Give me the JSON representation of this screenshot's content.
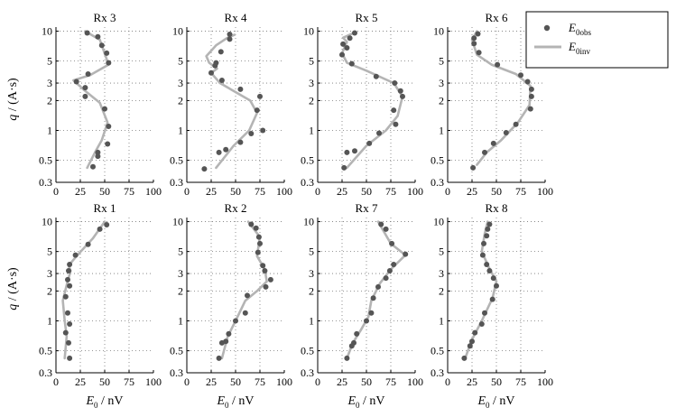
{
  "figure": {
    "ylabel": {
      "q": "q",
      "rest": " / (A·s)"
    },
    "xlabel": {
      "E": "E",
      "sub": "0",
      "rest": " / nV"
    },
    "legend": [
      {
        "base": "E",
        "sub": "0obs"
      },
      {
        "base": "E",
        "sub": "0inv"
      }
    ]
  },
  "chart_data": [
    {
      "type": "line",
      "title": "Rx 3",
      "xlim": [
        0,
        100
      ],
      "ylim": [
        0.3,
        11
      ],
      "yscale": "log",
      "xticks": [
        0,
        25,
        50,
        75,
        100
      ],
      "yticks": [
        0.3,
        0.5,
        1,
        2,
        3,
        5,
        10
      ],
      "series": [
        {
          "role": "obs",
          "points": [
            [
              32,
              9.6
            ],
            [
              43,
              8.8
            ],
            [
              47,
              7.2
            ],
            [
              52,
              6.0
            ],
            [
              54,
              4.8
            ],
            [
              33,
              3.7
            ],
            [
              21,
              3.1
            ],
            [
              30,
              2.7
            ],
            [
              30,
              2.2
            ],
            [
              50,
              1.65
            ],
            [
              54,
              1.1
            ],
            [
              53,
              0.73
            ],
            [
              43,
              0.6
            ],
            [
              43,
              0.55
            ],
            [
              38,
              0.43
            ]
          ]
        },
        {
          "role": "inv",
          "points": [
            [
              30,
              10
            ],
            [
              45,
              8.2
            ],
            [
              54,
              4.6
            ],
            [
              35,
              3.6
            ],
            [
              18,
              3.2
            ],
            [
              30,
              2.5
            ],
            [
              45,
              1.9
            ],
            [
              53,
              1.2
            ],
            [
              47,
              0.8
            ],
            [
              40,
              0.6
            ],
            [
              32,
              0.42
            ]
          ]
        }
      ]
    },
    {
      "type": "line",
      "title": "Rx 4",
      "xlim": [
        0,
        100
      ],
      "ylim": [
        0.3,
        11
      ],
      "yscale": "log",
      "xticks": [
        0,
        25,
        50,
        75,
        100
      ],
      "yticks": [
        0.3,
        0.5,
        1,
        2,
        3,
        5,
        10
      ],
      "series": [
        {
          "role": "obs",
          "points": [
            [
              44,
              9.3
            ],
            [
              44,
              8.3
            ],
            [
              35,
              6.2
            ],
            [
              30,
              4.8
            ],
            [
              29,
              4.5
            ],
            [
              25,
              3.8
            ],
            [
              36,
              3.2
            ],
            [
              55,
              2.6
            ],
            [
              75,
              2.2
            ],
            [
              72,
              1.6
            ],
            [
              78,
              1.0
            ],
            [
              66,
              0.93
            ],
            [
              55,
              0.76
            ],
            [
              40,
              0.64
            ],
            [
              33,
              0.6
            ],
            [
              18,
              0.41
            ]
          ]
        },
        {
          "role": "inv",
          "points": [
            [
              49,
              9.2
            ],
            [
              41,
              8.5
            ],
            [
              30,
              7.2
            ],
            [
              20,
              5.6
            ],
            [
              23,
              4.8
            ],
            [
              31,
              4.2
            ],
            [
              25,
              3.8
            ],
            [
              34,
              3.0
            ],
            [
              65,
              2.0
            ],
            [
              72,
              1.5
            ],
            [
              64,
              1.0
            ],
            [
              48,
              0.7
            ],
            [
              30,
              0.42
            ]
          ]
        }
      ]
    },
    {
      "type": "line",
      "title": "Rx 5",
      "xlim": [
        0,
        100
      ],
      "ylim": [
        0.3,
        11
      ],
      "yscale": "log",
      "xticks": [
        0,
        25,
        50,
        75,
        100
      ],
      "yticks": [
        0.3,
        0.5,
        1,
        2,
        3,
        5,
        10
      ],
      "series": [
        {
          "role": "obs",
          "points": [
            [
              38,
              9.6
            ],
            [
              33,
              8.5
            ],
            [
              26,
              7.4
            ],
            [
              30,
              6.8
            ],
            [
              25,
              5.8
            ],
            [
              35,
              4.7
            ],
            [
              60,
              3.5
            ],
            [
              79,
              3.0
            ],
            [
              85,
              2.5
            ],
            [
              87,
              2.2
            ],
            [
              78,
              1.6
            ],
            [
              80,
              1.15
            ],
            [
              63,
              0.94
            ],
            [
              53,
              0.74
            ],
            [
              38,
              0.62
            ],
            [
              30,
              0.6
            ],
            [
              27,
              0.42
            ]
          ]
        },
        {
          "role": "inv",
          "points": [
            [
              37,
              9.6
            ],
            [
              26,
              8.6
            ],
            [
              30,
              7.8
            ],
            [
              25,
              6.0
            ],
            [
              30,
              4.8
            ],
            [
              50,
              4.0
            ],
            [
              78,
              3.0
            ],
            [
              87,
              2.2
            ],
            [
              82,
              1.4
            ],
            [
              70,
              1.0
            ],
            [
              50,
              0.7
            ],
            [
              30,
              0.42
            ]
          ]
        }
      ]
    },
    {
      "type": "line",
      "title": "Rx 6",
      "xlim": [
        0,
        100
      ],
      "ylim": [
        0.3,
        11
      ],
      "yscale": "log",
      "xticks": [
        0,
        25,
        50,
        75,
        100
      ],
      "yticks": [
        0.3,
        0.5,
        1,
        2,
        3,
        5,
        10
      ],
      "series": [
        {
          "role": "obs",
          "points": [
            [
              31,
              9.4
            ],
            [
              27,
              8.5
            ],
            [
              27,
              7.5
            ],
            [
              32,
              6.1
            ],
            [
              51,
              4.6
            ],
            [
              75,
              3.6
            ],
            [
              82,
              3.1
            ],
            [
              86,
              2.6
            ],
            [
              86,
              2.2
            ],
            [
              85,
              1.65
            ],
            [
              70,
              1.15
            ],
            [
              60,
              0.95
            ],
            [
              47,
              0.74
            ],
            [
              38,
              0.6
            ],
            [
              26,
              0.42
            ]
          ]
        },
        {
          "role": "inv",
          "points": [
            [
              30,
              10
            ],
            [
              25,
              8.2
            ],
            [
              30,
              5.8
            ],
            [
              45,
              4.6
            ],
            [
              70,
              3.7
            ],
            [
              85,
              2.8
            ],
            [
              84,
              1.8
            ],
            [
              72,
              1.2
            ],
            [
              55,
              0.8
            ],
            [
              40,
              0.6
            ],
            [
              30,
              0.45
            ]
          ]
        }
      ]
    },
    {
      "type": "line",
      "title": "Rx 1",
      "xlim": [
        0,
        100
      ],
      "ylim": [
        0.3,
        11
      ],
      "yscale": "log",
      "xticks": [
        0,
        25,
        50,
        75,
        100
      ],
      "yticks": [
        0.3,
        0.5,
        1,
        2,
        3,
        5,
        10
      ],
      "series": [
        {
          "role": "obs",
          "points": [
            [
              52,
              9.3
            ],
            [
              45,
              8.4
            ],
            [
              33,
              5.9
            ],
            [
              20,
              4.6
            ],
            [
              14,
              3.7
            ],
            [
              13,
              3.2
            ],
            [
              12,
              2.6
            ],
            [
              14,
              2.25
            ],
            [
              10,
              1.75
            ],
            [
              12,
              1.2
            ],
            [
              14,
              0.93
            ],
            [
              10,
              0.76
            ],
            [
              13,
              0.6
            ],
            [
              14,
              0.42
            ]
          ]
        },
        {
          "role": "inv",
          "points": [
            [
              50,
              10
            ],
            [
              38,
              6.8
            ],
            [
              22,
              4.6
            ],
            [
              13,
              3.6
            ],
            [
              15,
              3.2
            ],
            [
              11,
              2.3
            ],
            [
              7,
              1.6
            ],
            [
              9,
              1.0
            ],
            [
              11,
              0.7
            ],
            [
              9,
              0.42
            ]
          ]
        }
      ]
    },
    {
      "type": "line",
      "title": "Rx 2",
      "xlim": [
        0,
        100
      ],
      "ylim": [
        0.3,
        11
      ],
      "yscale": "log",
      "xticks": [
        0,
        25,
        50,
        75,
        100
      ],
      "yticks": [
        0.3,
        0.5,
        1,
        2,
        3,
        5,
        10
      ],
      "series": [
        {
          "role": "obs",
          "points": [
            [
              66,
              9.4
            ],
            [
              71,
              8.6
            ],
            [
              74,
              7.0
            ],
            [
              75,
              6.0
            ],
            [
              73,
              4.9
            ],
            [
              78,
              3.6
            ],
            [
              80,
              3.2
            ],
            [
              86,
              2.6
            ],
            [
              81,
              2.2
            ],
            [
              62,
              1.8
            ],
            [
              60,
              1.2
            ],
            [
              50,
              1.0
            ],
            [
              43,
              0.74
            ],
            [
              40,
              0.62
            ],
            [
              36,
              0.6
            ],
            [
              33,
              0.42
            ]
          ]
        },
        {
          "role": "inv",
          "points": [
            [
              63,
              10
            ],
            [
              75,
              7.0
            ],
            [
              72,
              4.5
            ],
            [
              80,
              3.3
            ],
            [
              82,
              2.5
            ],
            [
              72,
              2.0
            ],
            [
              60,
              1.6
            ],
            [
              50,
              1.0
            ],
            [
              42,
              0.7
            ],
            [
              36,
              0.42
            ]
          ]
        }
      ]
    },
    {
      "type": "line",
      "title": "Rx 7",
      "xlim": [
        0,
        100
      ],
      "ylim": [
        0.3,
        11
      ],
      "yscale": "log",
      "xticks": [
        0,
        25,
        50,
        75,
        100
      ],
      "yticks": [
        0.3,
        0.5,
        1,
        2,
        3,
        5,
        10
      ],
      "series": [
        {
          "role": "obs",
          "points": [
            [
              65,
              9.4
            ],
            [
              70,
              8.4
            ],
            [
              76,
              6.0
            ],
            [
              90,
              4.7
            ],
            [
              78,
              3.7
            ],
            [
              74,
              3.2
            ],
            [
              70,
              2.7
            ],
            [
              62,
              2.2
            ],
            [
              57,
              1.7
            ],
            [
              55,
              1.2
            ],
            [
              50,
              1.0
            ],
            [
              40,
              0.74
            ],
            [
              37,
              0.6
            ],
            [
              35,
              0.56
            ],
            [
              30,
              0.42
            ]
          ]
        },
        {
          "role": "inv",
          "points": [
            [
              62,
              10
            ],
            [
              75,
              6.0
            ],
            [
              90,
              4.6
            ],
            [
              75,
              3.3
            ],
            [
              64,
              2.4
            ],
            [
              55,
              1.6
            ],
            [
              52,
              1.1
            ],
            [
              44,
              0.8
            ],
            [
              36,
              0.6
            ],
            [
              30,
              0.42
            ]
          ]
        }
      ]
    },
    {
      "type": "line",
      "title": "Rx 8",
      "xlim": [
        0,
        100
      ],
      "ylim": [
        0.3,
        11
      ],
      "yscale": "log",
      "xticks": [
        0,
        25,
        50,
        75,
        100
      ],
      "yticks": [
        0.3,
        0.5,
        1,
        2,
        3,
        5,
        10
      ],
      "series": [
        {
          "role": "obs",
          "points": [
            [
              43,
              9.4
            ],
            [
              41,
              8.4
            ],
            [
              40,
              7.2
            ],
            [
              37,
              6.0
            ],
            [
              36,
              4.6
            ],
            [
              40,
              3.7
            ],
            [
              43,
              3.2
            ],
            [
              47,
              2.7
            ],
            [
              50,
              2.25
            ],
            [
              46,
              1.65
            ],
            [
              38,
              1.2
            ],
            [
              35,
              0.93
            ],
            [
              28,
              0.76
            ],
            [
              25,
              0.62
            ],
            [
              23,
              0.56
            ],
            [
              17,
              0.42
            ]
          ]
        },
        {
          "role": "inv",
          "points": [
            [
              41,
              10
            ],
            [
              38,
              7.5
            ],
            [
              35,
              5.0
            ],
            [
              42,
              3.5
            ],
            [
              50,
              2.5
            ],
            [
              46,
              1.7
            ],
            [
              35,
              1.0
            ],
            [
              25,
              0.65
            ],
            [
              18,
              0.42
            ]
          ]
        }
      ]
    }
  ]
}
